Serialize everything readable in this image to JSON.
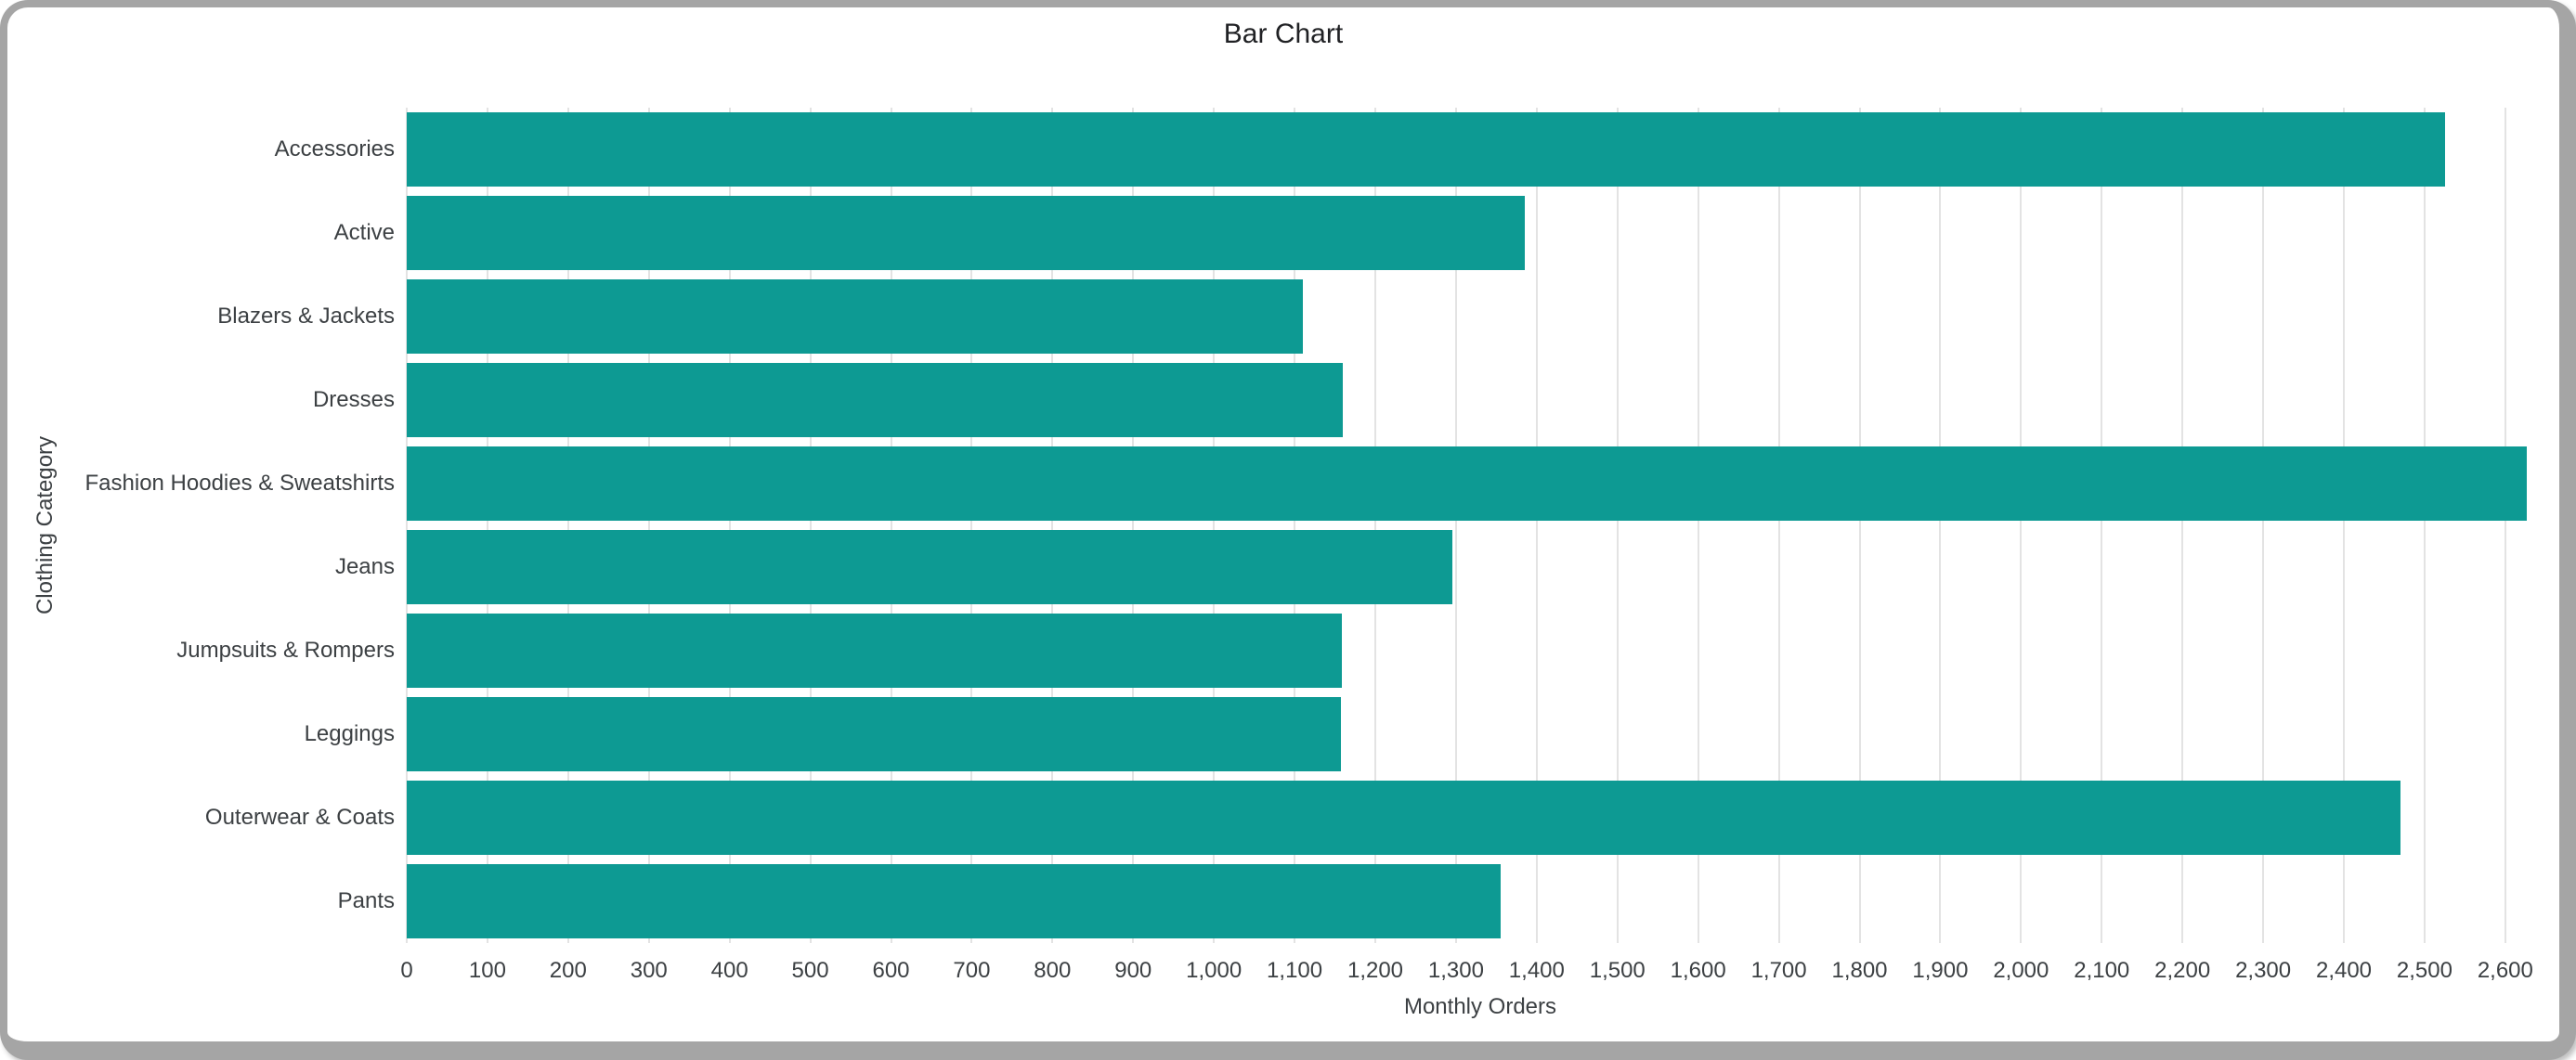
{
  "title": "Bar Chart",
  "colors": {
    "bar": "#0d9a93",
    "gridline": "#e3e3e3",
    "text": "#3c4043",
    "title_text": "#202124",
    "frame": "#a5a5a5",
    "background": "#ffffff"
  },
  "chart_data": {
    "type": "bar",
    "orientation": "horizontal",
    "title": "Bar Chart",
    "xlabel": "Monthly Orders",
    "ylabel": "Clothing Category",
    "categories": [
      "Accessories",
      "Active",
      "Blazers & Jackets",
      "Dresses",
      "Fashion Hoodies & Sweatshirts",
      "Jeans",
      "Jumpsuits & Rompers",
      "Leggings",
      "Outerwear & Coats",
      "Pants"
    ],
    "values": [
      2525,
      1385,
      1110,
      1160,
      2627,
      1296,
      1159,
      1157,
      2470,
      1355
    ],
    "xlim": [
      0,
      2660
    ],
    "x_tick_interval": 100,
    "x_tick_min": 0,
    "x_tick_max": 2600,
    "x_tick_labels": [
      "0",
      "100",
      "200",
      "300",
      "400",
      "500",
      "600",
      "700",
      "800",
      "900",
      "1,000",
      "1,100",
      "1,200",
      "1,300",
      "1,400",
      "1,500",
      "1,600",
      "1,700",
      "1,800",
      "1,900",
      "2,000",
      "2,100",
      "2,200",
      "2,300",
      "2,400",
      "2,500",
      "2,600"
    ],
    "grid": true,
    "legend": "none",
    "bar_color": "#0d9a93"
  }
}
